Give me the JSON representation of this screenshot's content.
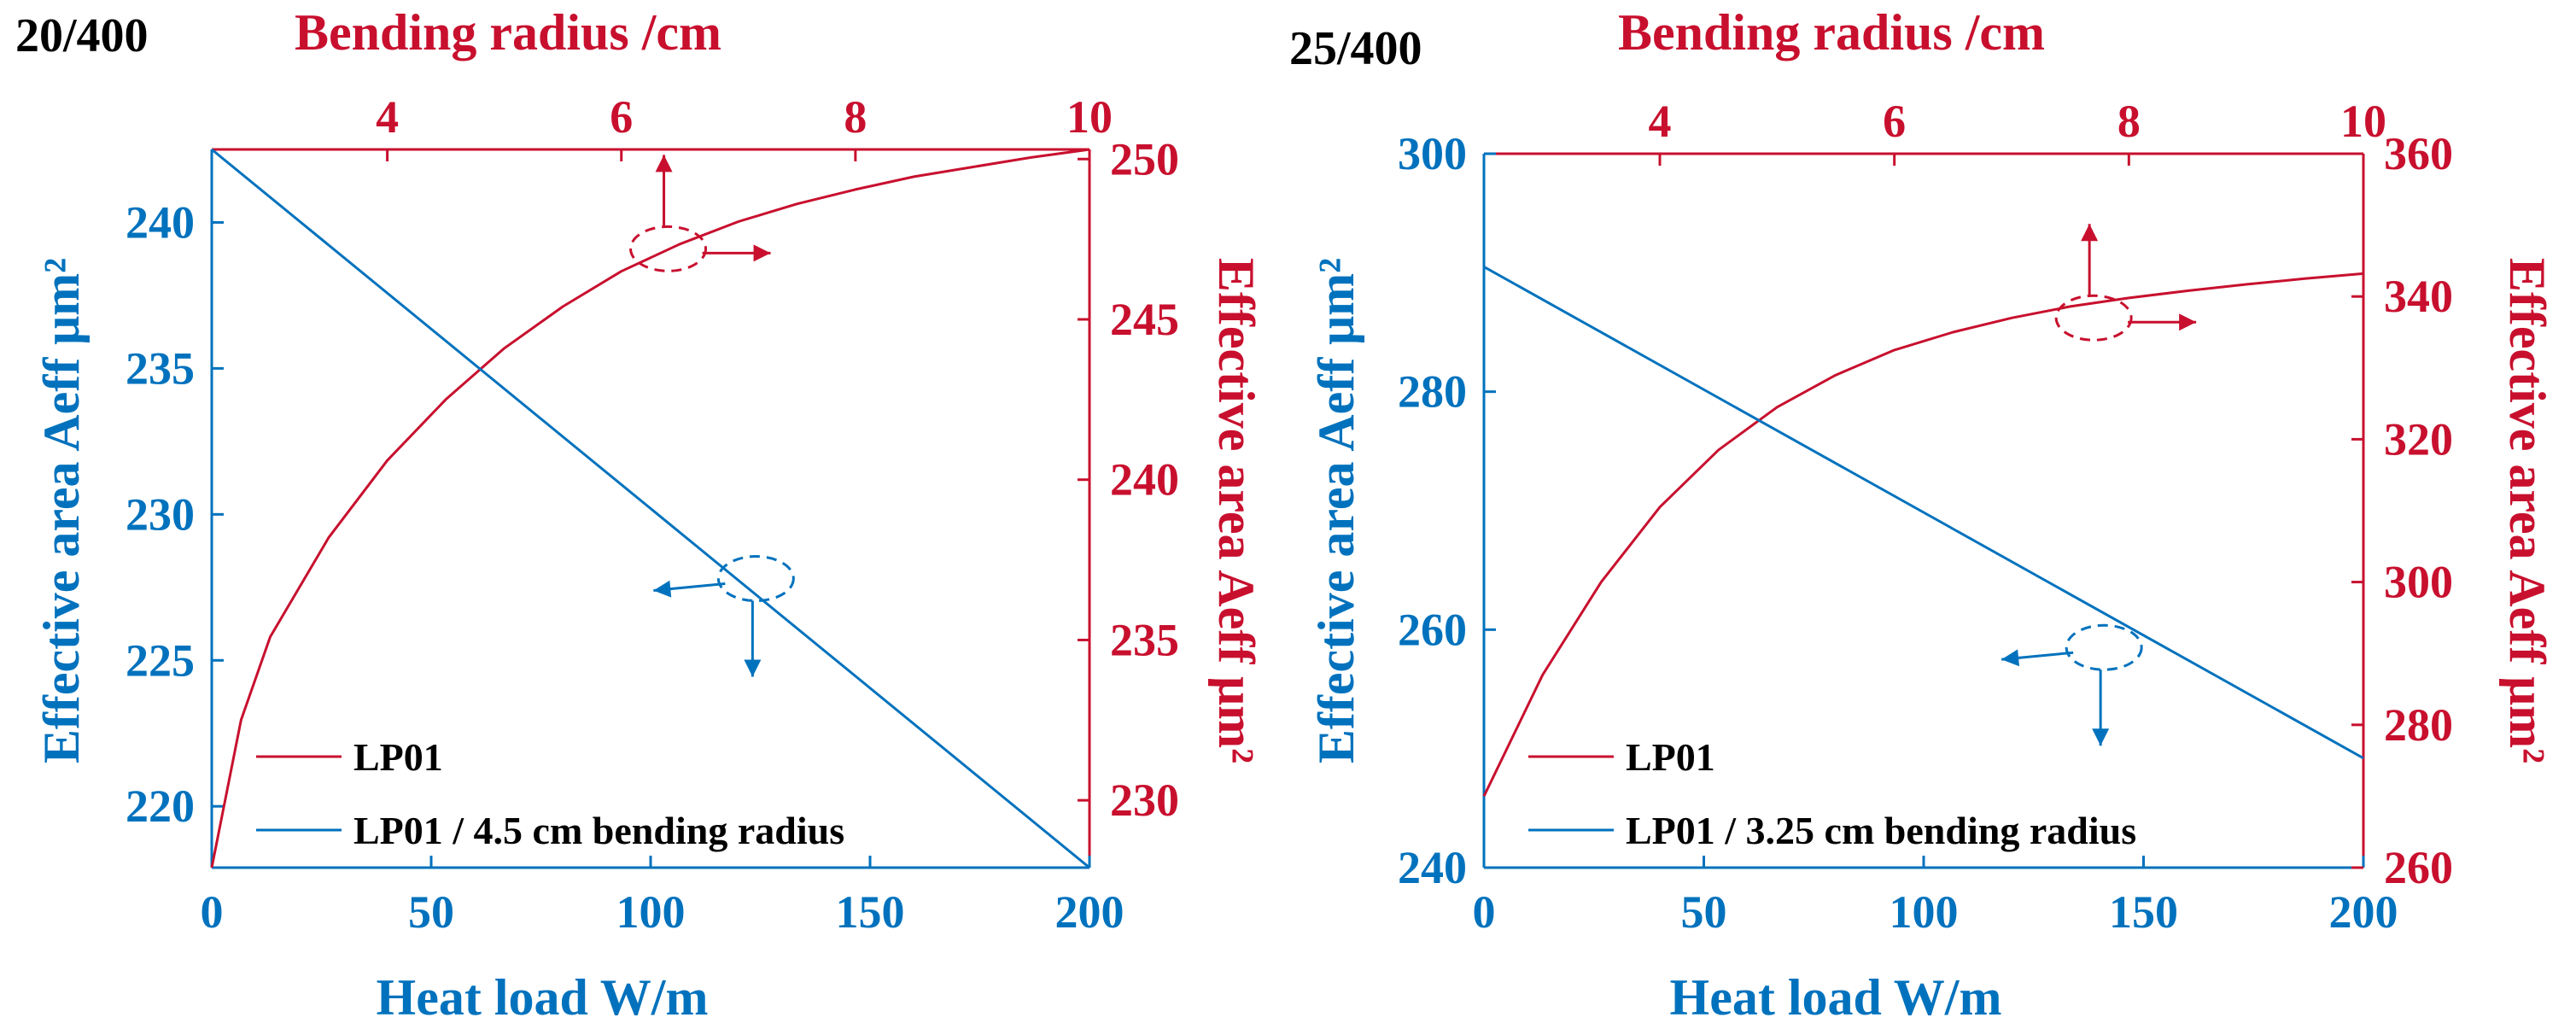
{
  "colors": {
    "blue": "#0072BD",
    "red": "#C8102E",
    "black": "#000000"
  },
  "chart_data": [
    {
      "type": "line",
      "panel_label": "20/400",
      "x_bottom": {
        "label": "Heat load W/m",
        "range": [
          0,
          200
        ],
        "ticks": [
          0,
          50,
          100,
          150,
          200
        ],
        "tick_labels": [
          "0",
          "50",
          "100",
          "150",
          "200"
        ]
      },
      "x_top": {
        "label": "Bending radius /cm",
        "range": [
          2.5,
          10
        ],
        "ticks": [
          4,
          6,
          8,
          10
        ],
        "tick_labels": [
          "4",
          "6",
          "8",
          "10"
        ]
      },
      "y_left": {
        "label": "Effective area Aeff μm²",
        "range": [
          217.9,
          242.5
        ],
        "ticks": [
          220,
          225,
          230,
          235,
          240
        ],
        "tick_labels": [
          "220",
          "225",
          "230",
          "235",
          "240"
        ]
      },
      "y_right": {
        "label": "Effective area Aeff μm²",
        "range": [
          227.9,
          250.3
        ],
        "ticks": [
          230,
          235,
          240,
          245,
          250
        ],
        "tick_labels": [
          "230",
          "235",
          "240",
          "245",
          "250"
        ]
      },
      "series": [
        {
          "name": "LP01",
          "color": "#C8102E",
          "x_axis": "top",
          "y_axis": "right",
          "x": [
            2.5,
            2.75,
            3.0,
            3.5,
            4.0,
            4.5,
            5.0,
            5.5,
            6.0,
            6.5,
            7.0,
            7.5,
            8.0,
            8.5,
            9.0,
            9.5,
            10.0
          ],
          "y": [
            227.9,
            232.5,
            235.1,
            238.2,
            240.6,
            242.5,
            244.1,
            245.4,
            246.5,
            247.35,
            248.05,
            248.6,
            249.05,
            249.45,
            249.75,
            250.05,
            250.3
          ]
        },
        {
          "name": "LP01 / 4.5 cm bending radius",
          "color": "#0072BD",
          "x_axis": "bottom",
          "y_axis": "left",
          "x": [
            0,
            200
          ],
          "y": [
            242.5,
            217.9
          ]
        }
      ],
      "legend": {
        "position": "bottom-left"
      },
      "annotations": [
        {
          "color": "#C8102E",
          "ellipse": [
            6.4,
            247.2
          ],
          "direction": "up-right"
        },
        {
          "color": "#0072BD",
          "ellipse": [
            124,
            227.8
          ],
          "direction": "left-down"
        }
      ],
      "grid": false
    },
    {
      "type": "line",
      "panel_label": "25/400",
      "x_bottom": {
        "label": "Heat load W/m",
        "range": [
          0,
          200
        ],
        "ticks": [
          0,
          50,
          100,
          150,
          200
        ],
        "tick_labels": [
          "0",
          "50",
          "100",
          "150",
          "200"
        ]
      },
      "x_top": {
        "label": "Bending radius /cm",
        "range": [
          2.5,
          10
        ],
        "ticks": [
          4,
          6,
          8,
          10
        ],
        "tick_labels": [
          "4",
          "6",
          "8",
          "10"
        ]
      },
      "y_left": {
        "label": "Effective area Aeff μm²",
        "range": [
          240,
          300
        ],
        "ticks": [
          240,
          260,
          280,
          300
        ],
        "tick_labels": [
          "240",
          "260",
          "280",
          "300"
        ]
      },
      "y_right": {
        "label": "Effective area Aeff μm²",
        "range": [
          260,
          360
        ],
        "ticks": [
          260,
          280,
          300,
          320,
          340,
          360
        ],
        "tick_labels": [
          "260",
          "280",
          "300",
          "320",
          "340",
          "360"
        ]
      },
      "series": [
        {
          "name": "LP01",
          "color": "#C8102E",
          "x_axis": "top",
          "y_axis": "right",
          "x": [
            2.5,
            3.0,
            3.5,
            4.0,
            4.5,
            5.0,
            5.5,
            6.0,
            6.5,
            7.0,
            7.5,
            8.0,
            8.5,
            9.0,
            9.5,
            10.0
          ],
          "y": [
            270,
            287,
            300,
            310.5,
            318.5,
            324.5,
            329,
            332.5,
            335,
            337,
            338.6,
            339.8,
            340.8,
            341.7,
            342.5,
            343.2
          ]
        },
        {
          "name": "LP01 / 3.25 cm bending radius",
          "color": "#0072BD",
          "x_axis": "bottom",
          "y_axis": "left",
          "x": [
            0,
            200
          ],
          "y": [
            290.5,
            249.2
          ]
        }
      ],
      "legend": {
        "position": "bottom-left"
      },
      "annotations": [
        {
          "color": "#C8102E",
          "ellipse": [
            7.7,
            337
          ],
          "direction": "up-right"
        },
        {
          "color": "#0072BD",
          "ellipse": [
            141,
            258.5
          ],
          "direction": "left-down"
        }
      ],
      "grid": false
    }
  ]
}
